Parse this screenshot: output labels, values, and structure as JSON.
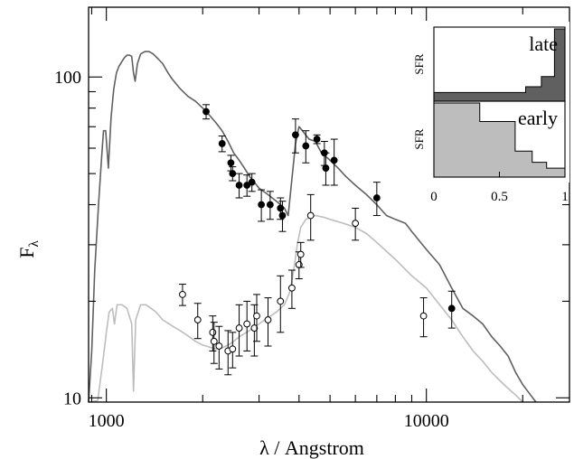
{
  "chart_data": {
    "type": "line",
    "xlabel": "λ / Angstrom",
    "ylabel": "F",
    "ylabel_subscript": "λ",
    "xscale": "log",
    "yscale": "log",
    "xlim": [
      880,
      28000
    ],
    "ylim": [
      9.7,
      165
    ],
    "xticks": [
      {
        "value": 1000,
        "label": "1000"
      },
      {
        "value": 10000,
        "label": "10000"
      }
    ],
    "yticks": [
      {
        "value": 10,
        "label": "10"
      },
      {
        "value": 100,
        "label": "100"
      }
    ],
    "grid": false,
    "colors": {
      "late": "#606060",
      "early": "#bdbdbd",
      "axis": "#000000"
    },
    "series": [
      {
        "role": "late-model",
        "values": [
          [
            880,
            9.7
          ],
          [
            900,
            14
          ],
          [
            920,
            25
          ],
          [
            945,
            40
          ],
          [
            965,
            55
          ],
          [
            980,
            68
          ],
          [
            995,
            68
          ],
          [
            1015,
            52
          ],
          [
            1035,
            75
          ],
          [
            1055,
            92
          ],
          [
            1075,
            103
          ],
          [
            1095,
            108
          ],
          [
            1120,
            112
          ],
          [
            1140,
            115
          ],
          [
            1160,
            117
          ],
          [
            1180,
            117
          ],
          [
            1200,
            116
          ],
          [
            1216,
            103
          ],
          [
            1230,
            97
          ],
          [
            1250,
            110
          ],
          [
            1280,
            118
          ],
          [
            1320,
            120
          ],
          [
            1360,
            120
          ],
          [
            1400,
            118
          ],
          [
            1450,
            114
          ],
          [
            1500,
            110
          ],
          [
            1550,
            104
          ],
          [
            1600,
            99
          ],
          [
            1700,
            92
          ],
          [
            1800,
            87
          ],
          [
            1900,
            84
          ],
          [
            2000,
            80
          ],
          [
            2100,
            76
          ],
          [
            2200,
            72
          ],
          [
            2300,
            68
          ],
          [
            2400,
            63
          ],
          [
            2500,
            58
          ],
          [
            2600,
            55
          ],
          [
            2700,
            52
          ],
          [
            2800,
            49
          ],
          [
            2900,
            47
          ],
          [
            3000,
            45
          ],
          [
            3200,
            43
          ],
          [
            3400,
            41
          ],
          [
            3600,
            39
          ],
          [
            3700,
            37
          ],
          [
            3800,
            48
          ],
          [
            3900,
            62
          ],
          [
            4000,
            70
          ],
          [
            4100,
            68
          ],
          [
            4300,
            64
          ],
          [
            4500,
            63
          ],
          [
            4700,
            58
          ],
          [
            4900,
            56
          ],
          [
            5000,
            55
          ],
          [
            5300,
            52
          ],
          [
            5600,
            49
          ],
          [
            6000,
            46
          ],
          [
            6500,
            43
          ],
          [
            7000,
            40
          ],
          [
            7500,
            37
          ],
          [
            8000,
            36
          ],
          [
            8600,
            35
          ],
          [
            9000,
            33
          ],
          [
            10000,
            29
          ],
          [
            11000,
            26
          ],
          [
            12000,
            22
          ],
          [
            13000,
            19
          ],
          [
            14000,
            18
          ],
          [
            15000,
            17
          ],
          [
            16000,
            15.5
          ],
          [
            17000,
            14.5
          ],
          [
            18000,
            13.5
          ],
          [
            19000,
            12
          ],
          [
            20000,
            11
          ],
          [
            21000,
            10.3
          ],
          [
            22000,
            9.7
          ]
        ]
      },
      {
        "role": "early-model",
        "values": [
          [
            880,
            9.7
          ],
          [
            940,
            9.8
          ],
          [
            975,
            13
          ],
          [
            1000,
            16
          ],
          [
            1020,
            18.5
          ],
          [
            1045,
            19
          ],
          [
            1060,
            17
          ],
          [
            1080,
            19.5
          ],
          [
            1120,
            19.5
          ],
          [
            1160,
            19
          ],
          [
            1200,
            17
          ],
          [
            1216,
            10.5
          ],
          [
            1235,
            17.5
          ],
          [
            1280,
            19.5
          ],
          [
            1330,
            19.5
          ],
          [
            1380,
            19
          ],
          [
            1430,
            18.5
          ],
          [
            1500,
            17.5
          ],
          [
            1600,
            16.8
          ],
          [
            1700,
            16.2
          ],
          [
            1800,
            15.6
          ],
          [
            1900,
            15
          ],
          [
            2000,
            14.6
          ],
          [
            2100,
            14.4
          ],
          [
            2200,
            14.2
          ],
          [
            2300,
            14.3
          ],
          [
            2400,
            14.6
          ],
          [
            2500,
            15
          ],
          [
            2600,
            15.5
          ],
          [
            2800,
            16.2
          ],
          [
            3000,
            17
          ],
          [
            3200,
            17.8
          ],
          [
            3400,
            18.5
          ],
          [
            3600,
            19.5
          ],
          [
            3750,
            21.5
          ],
          [
            3850,
            25
          ],
          [
            3950,
            30
          ],
          [
            4050,
            34
          ],
          [
            4200,
            36
          ],
          [
            4500,
            37
          ],
          [
            4800,
            36.5
          ],
          [
            5000,
            36
          ],
          [
            5500,
            35
          ],
          [
            6000,
            34
          ],
          [
            6500,
            32.5
          ],
          [
            7000,
            30.5
          ],
          [
            8000,
            27
          ],
          [
            9000,
            24
          ],
          [
            10000,
            22
          ],
          [
            11000,
            19.5
          ],
          [
            12000,
            17.5
          ],
          [
            13000,
            15.5
          ],
          [
            14000,
            14
          ],
          [
            15000,
            13
          ],
          [
            16000,
            12
          ],
          [
            17000,
            11.3
          ],
          [
            18000,
            10.7
          ],
          [
            19000,
            10.2
          ],
          [
            20000,
            9.7
          ]
        ]
      }
    ],
    "observations": [
      {
        "role": "late-data",
        "filled": true,
        "points": [
          {
            "x": 2050,
            "y": 78,
            "err": 4
          },
          {
            "x": 2300,
            "y": 62,
            "err": 3.5
          },
          {
            "x": 2450,
            "y": 54,
            "err": 3
          },
          {
            "x": 2480,
            "y": 50,
            "err": 2.5
          },
          {
            "x": 2600,
            "y": 46,
            "err": 4
          },
          {
            "x": 2750,
            "y": 46,
            "err": 3.5
          },
          {
            "x": 2850,
            "y": 47,
            "err": 3
          },
          {
            "x": 3050,
            "y": 40,
            "err": 4.5
          },
          {
            "x": 3250,
            "y": 40,
            "err": 4
          },
          {
            "x": 3500,
            "y": 39,
            "err": 3
          },
          {
            "x": 3550,
            "y": 37,
            "err": 4
          },
          {
            "x": 3900,
            "y": 66,
            "err": 8
          },
          {
            "x": 4200,
            "y": 61,
            "err": 7
          },
          {
            "x": 4550,
            "y": 64,
            "err": 2
          },
          {
            "x": 4800,
            "y": 58,
            "err": 5
          },
          {
            "x": 4850,
            "y": 52,
            "err": 6
          },
          {
            "x": 5150,
            "y": 55,
            "err": 9
          },
          {
            "x": 7000,
            "y": 42,
            "err": 5
          },
          {
            "x": 12000,
            "y": 19,
            "err": 2.5
          }
        ]
      },
      {
        "role": "early-data",
        "filled": false,
        "points": [
          {
            "x": 1730,
            "y": 21,
            "err": 1.6
          },
          {
            "x": 1930,
            "y": 17.5,
            "err": 2.2
          },
          {
            "x": 2150,
            "y": 16,
            "err": 2
          },
          {
            "x": 2170,
            "y": 15,
            "err": 2.2
          },
          {
            "x": 2250,
            "y": 14.5,
            "err": 2.2
          },
          {
            "x": 2400,
            "y": 14,
            "err": 2.2
          },
          {
            "x": 2480,
            "y": 14.2,
            "err": 1.8
          },
          {
            "x": 2600,
            "y": 16.5,
            "err": 3
          },
          {
            "x": 2750,
            "y": 17,
            "err": 3
          },
          {
            "x": 2900,
            "y": 16.5,
            "err": 3
          },
          {
            "x": 2950,
            "y": 18,
            "err": 3
          },
          {
            "x": 3200,
            "y": 17.5,
            "err": 3
          },
          {
            "x": 3500,
            "y": 20,
            "err": 4
          },
          {
            "x": 3800,
            "y": 22,
            "err": 3
          },
          {
            "x": 4000,
            "y": 26,
            "err": 2.5
          },
          {
            "x": 4050,
            "y": 28,
            "err": 2.5
          },
          {
            "x": 4350,
            "y": 37,
            "err": 6
          },
          {
            "x": 6000,
            "y": 35,
            "err": 4
          },
          {
            "x": 9800,
            "y": 18,
            "err": 2.5
          }
        ]
      }
    ],
    "inset": {
      "xlim": [
        0,
        1
      ],
      "xticks": [
        0,
        0.5,
        1
      ],
      "xtick_labels": [
        "0",
        "0.5",
        "1"
      ],
      "panels": [
        {
          "label": "late",
          "ylabel": "SFR",
          "color": "#606060",
          "edges": [
            0,
            0.25,
            0.4,
            0.55,
            0.7,
            0.82,
            0.92,
            1
          ],
          "heights": [
            0.12,
            0.12,
            0.12,
            0.12,
            0.2,
            0.34,
            1
          ]
        },
        {
          "label": "early",
          "ylabel": "SFR",
          "color": "#bdbdbd",
          "edges": [
            0,
            0.18,
            0.35,
            0.62,
            0.75,
            0.86,
            1
          ],
          "heights": [
            1,
            1,
            0.75,
            0.35,
            0.2,
            0.12
          ]
        }
      ]
    }
  }
}
